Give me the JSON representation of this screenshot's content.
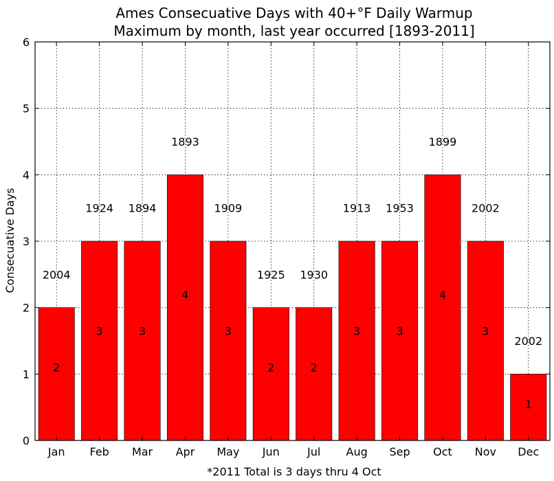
{
  "chart_data": {
    "type": "bar",
    "title_line1": "Ames Consecuative Days with 40+°F Daily Warmup",
    "title_line2": "Maximum by month, last year occurred [1893-2011]",
    "ylabel": "Consecuative Days",
    "xlabel": "*2011 Total is 3 days thru 4 Oct",
    "ylim": [
      0,
      6
    ],
    "yticks": [
      "0",
      "1",
      "2",
      "3",
      "4",
      "5",
      "6"
    ],
    "grid": true,
    "bar_color": "#ff0000",
    "categories": [
      "Jan",
      "Feb",
      "Mar",
      "Apr",
      "May",
      "Jun",
      "Jul",
      "Aug",
      "Sep",
      "Oct",
      "Nov",
      "Dec"
    ],
    "values": [
      2,
      3,
      3,
      4,
      3,
      2,
      2,
      3,
      3,
      4,
      3,
      1
    ],
    "value_labels": [
      "2",
      "3",
      "3",
      "4",
      "3",
      "2",
      "2",
      "3",
      "3",
      "4",
      "3",
      "1"
    ],
    "years": [
      "2004",
      "1924",
      "1894",
      "1893",
      "1909",
      "1925",
      "1930",
      "1913",
      "1953",
      "1899",
      "2002",
      "2002"
    ]
  }
}
